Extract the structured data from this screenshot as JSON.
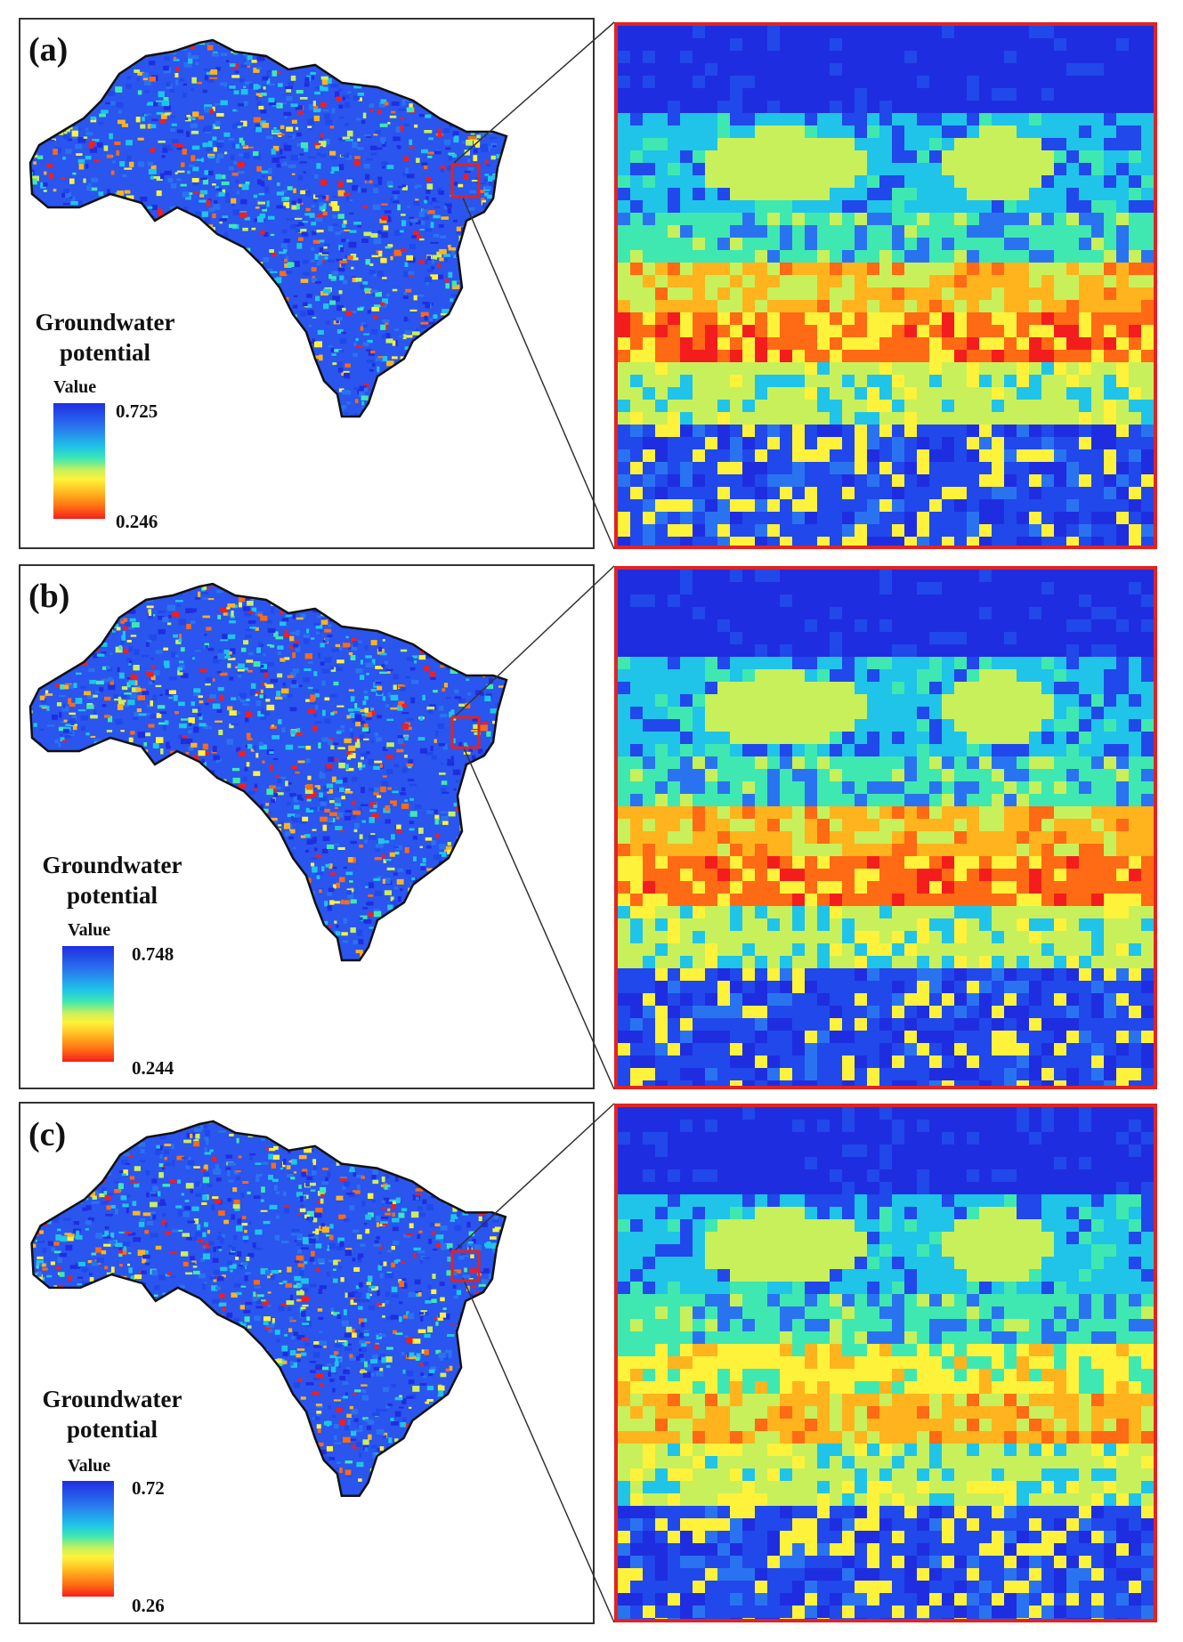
{
  "panels": [
    {
      "label": "(a)",
      "legend_title": "Groundwater\npotential",
      "legend_word": "Value",
      "max": "0.725",
      "min": "0.246"
    },
    {
      "label": "(b)",
      "legend_title": "Groundwater\npotential",
      "legend_word": "Value",
      "max": "0.748",
      "min": "0.244"
    },
    {
      "label": "(c)",
      "legend_title": "Groundwater\npotential",
      "legend_word": "Value",
      "max": "0.72",
      "min": "0.26"
    }
  ],
  "colors": {
    "high": "#1f2de0",
    "mid": "#3fe8b0",
    "low": "#f41d1d",
    "zoom_border": "#e32222"
  }
}
